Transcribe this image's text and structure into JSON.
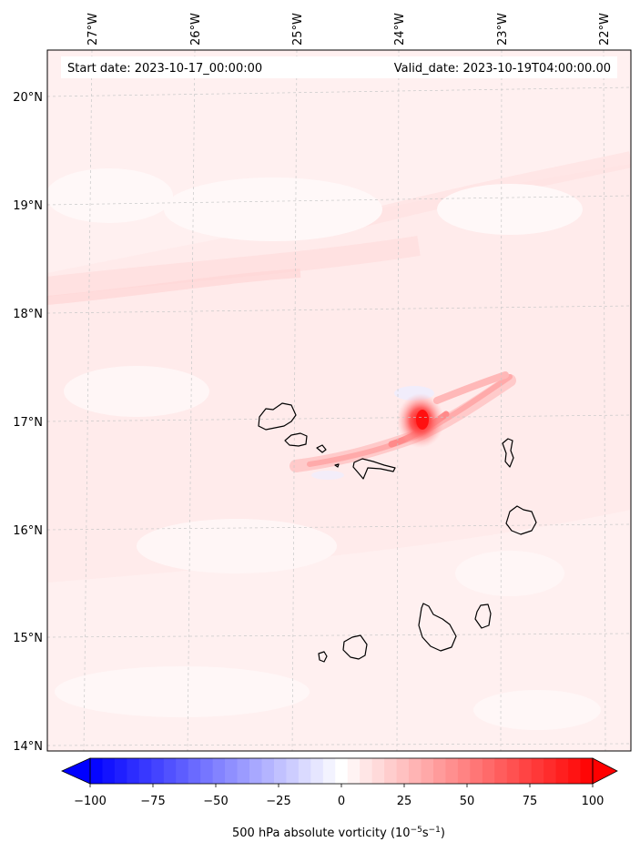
{
  "header": {
    "start_date": "Start date: 2023-10-17_00:00:00",
    "valid_date": "Valid_date: 2023-10-19T04:00:00.00"
  },
  "map": {
    "longitude_labels": [
      "27°W",
      "26°W",
      "25°W",
      "24°W",
      "23°W",
      "22°W"
    ],
    "latitude_labels": [
      "20°N",
      "19°N",
      "18°N",
      "17°N",
      "16°N",
      "15°N",
      "14°N"
    ],
    "extent": {
      "lon_min": -27.4,
      "lon_max": -21.75,
      "lat_min": 13.95,
      "lat_max": 20.42
    },
    "gridlines": true,
    "field": "500 hPa absolute vorticity",
    "max_center": {
      "lon": -23.6,
      "lat": 17.0
    }
  },
  "colorbar": {
    "ticks": [
      "−100",
      "−75",
      "−50",
      "−25",
      "0",
      "25",
      "50",
      "75",
      "100"
    ],
    "min": -100,
    "max": 100,
    "levels": 41,
    "cmap": "bwr",
    "label_prefix": "500 hPa absolute vorticity (10",
    "label_exp1": "−5",
    "label_mid": "s",
    "label_exp2": "−1",
    "label_suffix": ")"
  },
  "colors": {
    "neg": "#0000ff",
    "zero": "#ffffff",
    "pos": "#ff0000",
    "coast": "#000000",
    "grid": "#c8c8c8"
  }
}
